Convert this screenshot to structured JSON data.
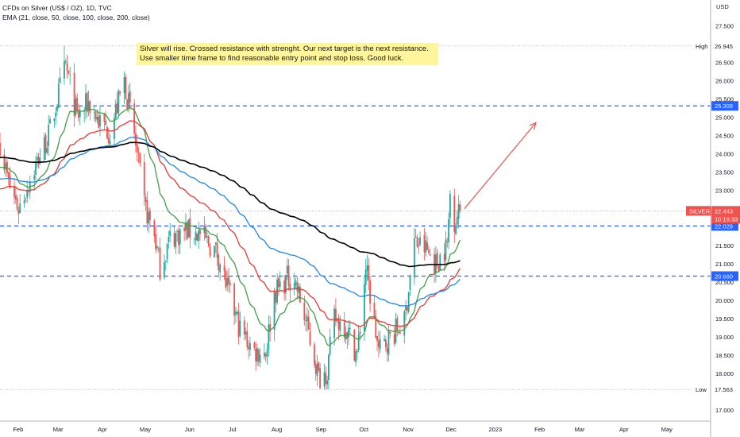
{
  "header": {
    "title": "CFDs on Silver (US$ / OZ), 1D, TVC",
    "indicator": "EMA (21, close, 50, close, 100, close, 200, close)"
  },
  "annotation": {
    "text": "Silver will rise. Crossed resistance with strenght. Our next target is the next resistance. Use smaller time frame to find reasonable entry point and stop loss. Good luck."
  },
  "axis": {
    "currency": "USD",
    "y_ticks": [
      "27.500",
      "27.000",
      "26.500",
      "26.000",
      "25.500",
      "25.000",
      "24.500",
      "24.000",
      "23.500",
      "23.000",
      "22.500",
      "22.000",
      "21.500",
      "21.000",
      "20.500",
      "20.000",
      "19.500",
      "19.000",
      "18.500",
      "18.000",
      "17.500",
      "17.000"
    ],
    "x_ticks": [
      "Feb",
      "Mar",
      "Apr",
      "May",
      "Jun",
      "Jul",
      "Aug",
      "Sep",
      "Oct",
      "Nov",
      "Dec",
      "2023",
      "Feb",
      "Mar",
      "Apr",
      "May"
    ]
  },
  "price_labels": {
    "high_label": "High",
    "high_value": "26.945",
    "low_label": "Low",
    "low_value": "17.563",
    "level_top": "25.309",
    "level_mid": "22.029",
    "level_bot": "20.660",
    "symbol": "SILVER",
    "last_price": "22.443",
    "countdown": "10:16:33"
  },
  "colors": {
    "up": "#26a69a",
    "down": "#ef5350",
    "ema21": "#43a047",
    "ema50": "#e53935",
    "ema100": "#1e88e5",
    "ema200": "#000000",
    "level": "#2962ff",
    "arrow": "#ef5350"
  },
  "chart_data": {
    "type": "candlestick",
    "symbol": "SILVER",
    "timeframe": "1D",
    "currency": "USD",
    "ylim": [
      16.7,
      28.2
    ],
    "x_range": [
      "2022-01-21",
      "2023-05-15"
    ],
    "candles_start": "2022-01-21",
    "candles_end": "2022-12-09",
    "waypoints": [
      [
        "2022-01-21",
        24.3
      ],
      [
        "2022-01-27",
        23.2
      ],
      [
        "2022-02-03",
        22.5
      ],
      [
        "2022-02-14",
        23.6
      ],
      [
        "2022-02-24",
        24.5
      ],
      [
        "2022-03-04",
        25.8
      ],
      [
        "2022-03-08",
        26.4
      ],
      [
        "2022-03-16",
        25.0
      ],
      [
        "2022-03-24",
        25.4
      ],
      [
        "2022-03-31",
        24.9
      ],
      [
        "2022-04-08",
        24.6
      ],
      [
        "2022-04-18",
        26.0
      ],
      [
        "2022-04-25",
        24.5
      ],
      [
        "2022-05-02",
        22.6
      ],
      [
        "2022-05-09",
        21.8
      ],
      [
        "2022-05-13",
        20.9
      ],
      [
        "2022-05-20",
        21.7
      ],
      [
        "2022-05-31",
        21.9
      ],
      [
        "2022-06-10",
        21.8
      ],
      [
        "2022-06-22",
        21.3
      ],
      [
        "2022-06-30",
        20.2
      ],
      [
        "2022-07-08",
        19.2
      ],
      [
        "2022-07-18",
        18.6
      ],
      [
        "2022-07-26",
        18.6
      ],
      [
        "2022-08-01",
        20.2
      ],
      [
        "2022-08-10",
        20.6
      ],
      [
        "2022-08-15",
        20.6
      ],
      [
        "2022-08-25",
        19.1
      ],
      [
        "2022-09-01",
        17.9
      ],
      [
        "2022-09-07",
        18.1
      ],
      [
        "2022-09-12",
        19.5
      ],
      [
        "2022-09-20",
        19.3
      ],
      [
        "2022-09-28",
        18.5
      ],
      [
        "2022-10-04",
        20.9
      ],
      [
        "2022-10-13",
        18.6
      ],
      [
        "2022-10-21",
        19.0
      ],
      [
        "2022-10-31",
        19.4
      ],
      [
        "2022-11-07",
        21.6
      ],
      [
        "2022-11-15",
        21.4
      ],
      [
        "2022-11-22",
        21.0
      ],
      [
        "2022-11-30",
        21.5
      ],
      [
        "2022-12-02",
        22.9
      ],
      [
        "2022-12-05",
        22.2
      ],
      [
        "2022-12-09",
        22.44
      ]
    ],
    "ema": [
      {
        "name": "EMA 21",
        "period": 21,
        "color": "#43a047"
      },
      {
        "name": "EMA 50",
        "period": 50,
        "color": "#e53935"
      },
      {
        "name": "EMA 100",
        "period": 100,
        "color": "#1e88e5"
      },
      {
        "name": "EMA 200",
        "period": 200,
        "color": "#000000"
      }
    ],
    "horizontal_levels": [
      25.309,
      22.029,
      20.66
    ],
    "high": 26.945,
    "low": 17.563,
    "last_price": 22.443,
    "annotation_arrow": {
      "from": [
        "2022-12-12",
        22.5
      ],
      "to": [
        "2023-01-31",
        24.85
      ]
    }
  }
}
